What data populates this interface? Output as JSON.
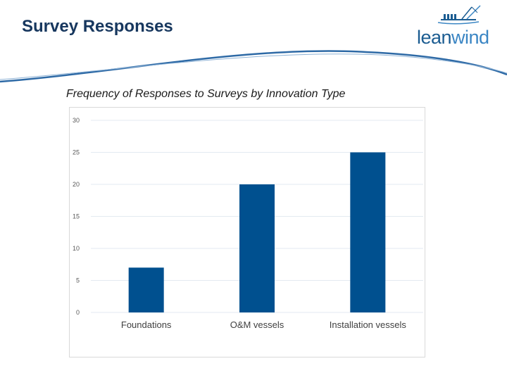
{
  "page": {
    "title": "Survey Responses"
  },
  "logo": {
    "text_lean": "lean",
    "text_wind": "wind",
    "icon": "ship-crane-icon"
  },
  "colors": {
    "title": "#17375e",
    "bar": "#00508f",
    "gridline": "#e3eaf1",
    "swoosh": "#2e6aa6"
  },
  "chart_data": {
    "type": "bar",
    "title": "Frequency of Responses to Surveys by Innovation Type",
    "xlabel": "",
    "ylabel": "",
    "categories": [
      "Foundations",
      "O&M vessels",
      "Installation vessels"
    ],
    "values": [
      7,
      20,
      25
    ],
    "ylim": [
      0,
      30
    ],
    "yticks": [
      0,
      5,
      10,
      15,
      20,
      25,
      30
    ],
    "grid": true,
    "legend": "none"
  }
}
